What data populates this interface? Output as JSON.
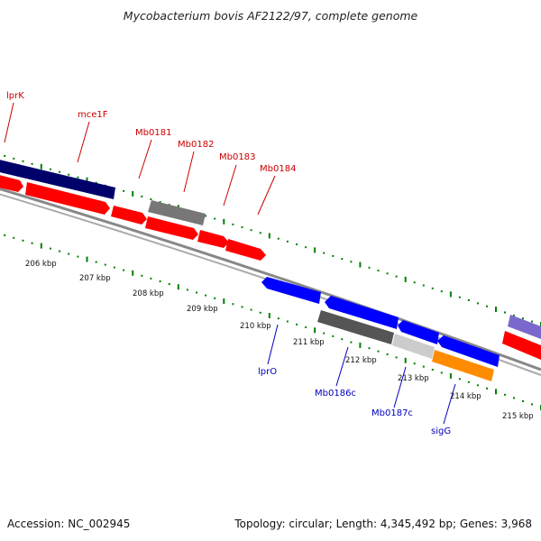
{
  "title": "Mycobacterium bovis AF2122/97, complete genome",
  "footer": {
    "accession": "Accession: NC_002945",
    "summary": "Topology: circular; Length: 4,345,492 bp; Genes: 3,968"
  },
  "colors": {
    "forward_gene": "#ff0000",
    "reverse_gene": "#0000ff",
    "navy_gene": "#00006b",
    "grey_gene": "#777777",
    "light_grey_gene": "#cccccc",
    "orange_gene": "#ff8c00",
    "purple_gene": "#7b68cc",
    "backbone": "#888888",
    "tick": "#008000",
    "label_forward": "#cc0000",
    "label_reverse": "#0000bb"
  },
  "forward_labels": [
    "lprK",
    "mce1F",
    "Mb0181",
    "Mb0182",
    "Mb0183",
    "Mb0184"
  ],
  "reverse_labels": [
    "lprO",
    "Mb0186c",
    "Mb0187c",
    "sigG"
  ],
  "kbp_labels": [
    "206 kbp",
    "207 kbp",
    "208 kbp",
    "209 kbp",
    "210 kbp",
    "211 kbp",
    "212 kbp",
    "213 kbp",
    "214 kbp",
    "215 kbp"
  ]
}
